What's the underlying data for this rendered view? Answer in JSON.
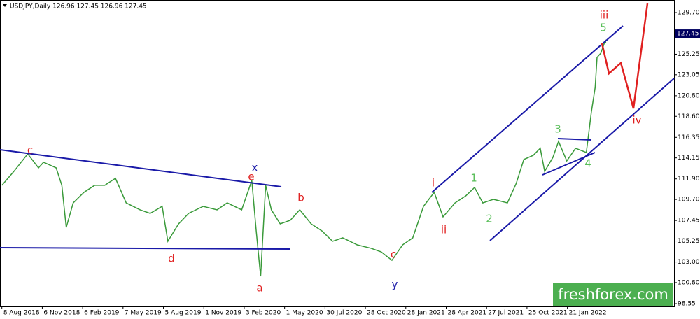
{
  "chart_data": {
    "type": "line",
    "title": "USDJPY,Daily  126.96 127.45 126.96 127.45",
    "series": [
      {
        "name": "USDJPY",
        "color": "#3a9a3a",
        "x": [
          0,
          19,
          41,
          58,
          66,
          86,
          95,
          102,
          113,
          130,
          147,
          163,
          180,
          197,
          219,
          235,
          254,
          263,
          280,
          296,
          319,
          341,
          357,
          380,
          396,
          403,
          410,
          418,
          427,
          441,
          457,
          472,
          490,
          507,
          524,
          540,
          563,
          585,
          601,
          618,
          635,
          651,
          668,
          685,
          699,
          718,
          735,
          749,
          762,
          779,
          801,
          815,
          827,
          842,
          853,
          860,
          873,
          882,
          895,
          909,
          926,
          934,
          940,
          943,
          949,
          956,
          957
        ],
        "values": [
          111.21,
          112.7,
          114.58,
          113.08,
          113.68,
          113.08,
          111.21,
          106.71,
          109.33,
          110.46,
          111.21,
          111.21,
          111.96,
          109.33,
          108.59,
          108.21,
          108.96,
          105.22,
          107.09,
          108.21,
          108.96,
          108.59,
          109.33,
          108.59,
          111.73,
          106.34,
          101.47,
          111.21,
          108.59,
          107.09,
          107.47,
          108.59,
          107.09,
          106.34,
          105.22,
          105.59,
          104.84,
          104.47,
          104.09,
          103.19,
          104.84,
          105.59,
          108.96,
          110.46,
          107.84,
          109.33,
          110.08,
          110.98,
          109.33,
          109.71,
          109.33,
          111.43,
          113.98,
          114.43,
          115.18,
          112.7,
          114.2,
          115.92,
          113.83,
          115.18,
          114.73,
          119.07,
          121.69,
          124.91,
          125.36,
          126.71,
          126.41
        ]
      }
    ],
    "xlim": [
      -3,
      1065
    ],
    "xticks": [
      {
        "value": 0,
        "label": "8 Aug 2018"
      },
      {
        "value": 64,
        "label": "6 Nov 2018"
      },
      {
        "value": 128,
        "label": "6 Feb 2019"
      },
      {
        "value": 192,
        "label": "7 May 2019"
      },
      {
        "value": 256,
        "label": "5 Aug 2019"
      },
      {
        "value": 320,
        "label": "1 Nov 2019"
      },
      {
        "value": 384,
        "label": "3 Feb 2020"
      },
      {
        "value": 448,
        "label": "1 May 2020"
      },
      {
        "value": 512,
        "label": "30 Jul 2020"
      },
      {
        "value": 576,
        "label": "28 Oct 2020"
      },
      {
        "value": 640,
        "label": "28 Jan 2021"
      },
      {
        "value": 704,
        "label": "28 Apr 2021"
      },
      {
        "value": 768,
        "label": "27 Jul 2021"
      },
      {
        "value": 832,
        "label": "25 Oct 2021"
      },
      {
        "value": 896,
        "label": "21 Jan 2022"
      }
    ],
    "ylim": [
      98.25,
      131.05
    ],
    "yticks": [
      98.55,
      {
        "value": 100.8,
        "label": "100.80"
      },
      {
        "value": 103,
        "label": "103.00"
      },
      105.25,
      107.45,
      {
        "value": 109.7,
        "label": "109.70"
      },
      {
        "value": 111.9,
        "label": "111.90"
      },
      114.15,
      116.35,
      {
        "value": 118.6,
        "label": "118.60"
      },
      {
        "value": 120.8,
        "label": "120.80"
      },
      123.05,
      125.25,
      {
        "value": 129.7,
        "label": "129.70"
      }
    ],
    "current_price": 127.45,
    "annotations": [
      "c",
      "x",
      "e",
      "d",
      "a",
      "b",
      "c",
      "y",
      "i",
      "ii",
      "1",
      "2",
      "3",
      "4",
      "5",
      "iii",
      "iv"
    ],
    "watermark": "freshforex.com"
  }
}
